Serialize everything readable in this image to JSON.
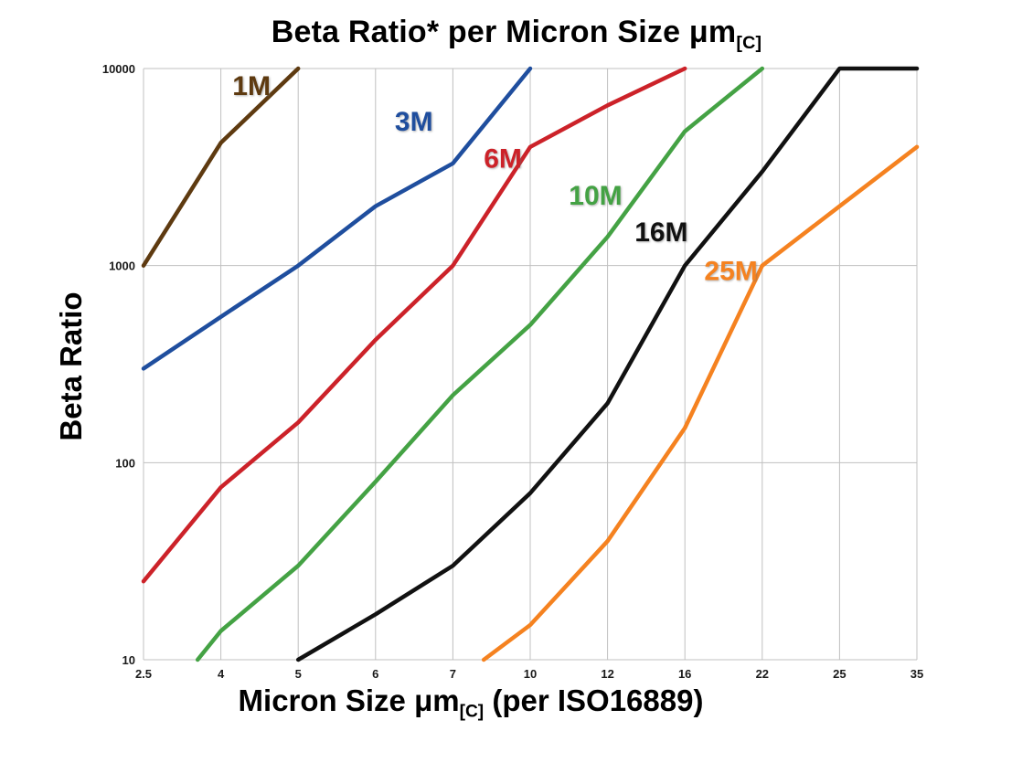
{
  "chart_data": {
    "type": "line",
    "title_main": "Beta Ratio* per Micron Size μm",
    "title_sub": "[C]",
    "ylabel": "Beta Ratio",
    "xlabel_main": "Micron Size μm",
    "xlabel_sub": "[C]",
    "xlabel_suffix": " (per ISO16889)",
    "x_scale": "categorical",
    "y_scale": "log",
    "grid": true,
    "legend_position": "inline-labels",
    "categories": [
      "2.5",
      "4",
      "5",
      "6",
      "7",
      "10",
      "12",
      "16",
      "22",
      "25",
      "35"
    ],
    "y_ticks": [
      "10",
      "100",
      "1000",
      "10000"
    ],
    "ylim": [
      10,
      10000
    ],
    "series": [
      {
        "name": "1M",
        "color": "#5e3a10",
        "label_pos": [
          0.115,
          0.045
        ],
        "points": [
          [
            0,
            1000
          ],
          [
            1,
            4200
          ],
          [
            2,
            10000
          ]
        ]
      },
      {
        "name": "3M",
        "color": "#1f4e9e",
        "label_pos": [
          0.325,
          0.105
        ],
        "points": [
          [
            0,
            300
          ],
          [
            1,
            550
          ],
          [
            2,
            1000
          ],
          [
            3,
            2000
          ],
          [
            4,
            3300
          ],
          [
            5,
            10000
          ]
        ]
      },
      {
        "name": "6M",
        "color": "#cc2229",
        "label_pos": [
          0.44,
          0.168
        ],
        "points": [
          [
            0,
            25
          ],
          [
            1,
            75
          ],
          [
            2,
            160
          ],
          [
            3,
            420
          ],
          [
            4,
            1000
          ],
          [
            5,
            4000
          ],
          [
            6,
            6500
          ],
          [
            7,
            10000
          ]
        ]
      },
      {
        "name": "10M",
        "color": "#44a244",
        "label_pos": [
          0.55,
          0.23
        ],
        "points": [
          [
            0.7,
            10
          ],
          [
            1,
            14
          ],
          [
            2,
            30
          ],
          [
            3,
            80
          ],
          [
            4,
            220
          ],
          [
            5,
            500
          ],
          [
            6,
            1400
          ],
          [
            7,
            4800
          ],
          [
            8,
            10000
          ]
        ]
      },
      {
        "name": "16M",
        "color": "#111111",
        "label_pos": [
          0.635,
          0.292
        ],
        "points": [
          [
            2,
            10
          ],
          [
            3,
            17
          ],
          [
            4,
            30
          ],
          [
            5,
            70
          ],
          [
            6,
            200
          ],
          [
            7,
            1000
          ],
          [
            8,
            3000
          ],
          [
            9,
            10000
          ],
          [
            10,
            10000
          ]
        ]
      },
      {
        "name": "25M",
        "color": "#f58220",
        "label_pos": [
          0.725,
          0.358
        ],
        "points": [
          [
            4.4,
            10
          ],
          [
            5,
            15
          ],
          [
            6,
            40
          ],
          [
            7,
            150
          ],
          [
            8,
            1000
          ],
          [
            9,
            2000
          ],
          [
            10,
            4000
          ]
        ]
      }
    ]
  }
}
